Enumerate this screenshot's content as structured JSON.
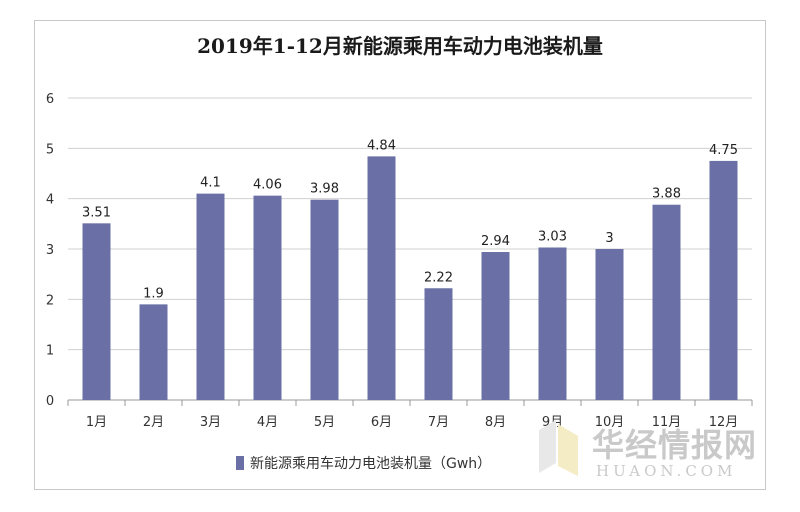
{
  "chart_data": {
    "type": "bar",
    "title": "2019年1-12月新能源乘用车动力电池装机量",
    "categories": [
      "1月",
      "2月",
      "3月",
      "4月",
      "5月",
      "6月",
      "7月",
      "8月",
      "9月",
      "10月",
      "11月",
      "12月"
    ],
    "series": [
      {
        "name": "新能源乘用车动力电池装机量（Gwh）",
        "values": [
          3.51,
          1.9,
          4.1,
          4.06,
          3.98,
          4.84,
          2.22,
          2.94,
          3.03,
          3,
          3.88,
          4.75
        ],
        "labels": [
          "3.51",
          "1.9",
          "4.1",
          "4.06",
          "3.98",
          "4.84",
          "2.22",
          "2.94",
          "3.03",
          "3",
          "3.88",
          "4.75"
        ]
      }
    ],
    "ylim": [
      0,
      6
    ],
    "yticks": [
      "0",
      "1",
      "2",
      "3",
      "4",
      "5",
      "6"
    ],
    "xlabel": "",
    "ylabel": "",
    "grid": true,
    "legend_position": "bottom",
    "bar_color": "#6a6fa5"
  },
  "watermark": {
    "name_cn": "华经情报网",
    "name_en": "HUAON.COM"
  }
}
